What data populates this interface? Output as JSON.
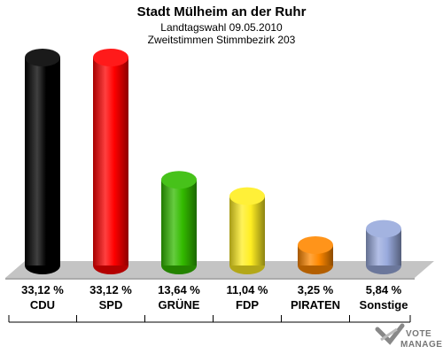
{
  "header": {
    "title": "Stadt Mülheim an der Ruhr",
    "subtitle1": "Landtagswahl 09.05.2010",
    "subtitle2": "Zweitstimmen Stimmbezirk 203"
  },
  "chart_data": {
    "type": "bar",
    "categories": [
      "CDU",
      "SPD",
      "GRÜNE",
      "FDP",
      "PIRATEN",
      "Sonstige"
    ],
    "values": [
      33.12,
      33.12,
      13.64,
      11.04,
      3.25,
      5.84
    ],
    "value_labels": [
      "33,12 %",
      "33,12 %",
      "13,64 %",
      "11,04 %",
      "3,25 %",
      "5,84 %"
    ],
    "colors": [
      "#000000",
      "#ff0000",
      "#33bb00",
      "#ffee22",
      "#ff8800",
      "#99aadd"
    ],
    "ylim": [
      0,
      33.12
    ],
    "grid": false,
    "legend": "none"
  },
  "logo": {
    "line1": "VOTE",
    "line2": "MANAGER"
  }
}
